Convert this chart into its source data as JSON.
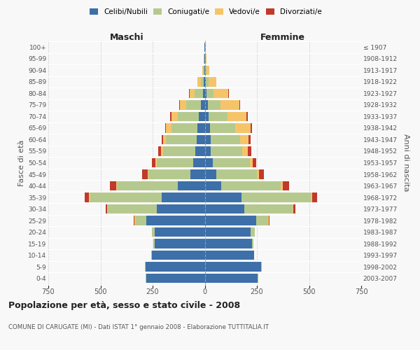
{
  "age_groups": [
    "0-4",
    "5-9",
    "10-14",
    "15-19",
    "20-24",
    "25-29",
    "30-34",
    "35-39",
    "40-44",
    "45-49",
    "50-54",
    "55-59",
    "60-64",
    "65-69",
    "70-74",
    "75-79",
    "80-84",
    "85-89",
    "90-94",
    "95-99",
    "100+"
  ],
  "birth_years": [
    "2003-2007",
    "1998-2002",
    "1993-1997",
    "1988-1992",
    "1983-1987",
    "1978-1982",
    "1973-1977",
    "1968-1972",
    "1963-1967",
    "1958-1962",
    "1953-1957",
    "1948-1952",
    "1943-1947",
    "1938-1942",
    "1933-1937",
    "1928-1932",
    "1923-1927",
    "1918-1922",
    "1913-1917",
    "1908-1912",
    "≤ 1907"
  ],
  "male": {
    "celibi": [
      280,
      285,
      255,
      240,
      240,
      280,
      230,
      205,
      130,
      70,
      55,
      45,
      40,
      35,
      30,
      18,
      8,
      4,
      3,
      2,
      2
    ],
    "coniugati": [
      2,
      2,
      2,
      5,
      15,
      55,
      235,
      345,
      290,
      200,
      175,
      155,
      145,
      125,
      100,
      70,
      40,
      15,
      5,
      2,
      1
    ],
    "vedovi": [
      0,
      0,
      0,
      0,
      0,
      2,
      2,
      5,
      5,
      5,
      8,
      10,
      15,
      25,
      30,
      30,
      25,
      15,
      3,
      1,
      0
    ],
    "divorziati": [
      0,
      0,
      0,
      0,
      0,
      3,
      8,
      20,
      30,
      25,
      15,
      12,
      8,
      5,
      5,
      3,
      2,
      0,
      0,
      0,
      0
    ]
  },
  "female": {
    "nubili": [
      255,
      270,
      235,
      225,
      220,
      245,
      190,
      175,
      80,
      55,
      40,
      30,
      30,
      25,
      20,
      15,
      8,
      5,
      3,
      2,
      2
    ],
    "coniugate": [
      2,
      2,
      2,
      8,
      20,
      60,
      230,
      335,
      285,
      195,
      175,
      150,
      140,
      120,
      90,
      60,
      35,
      12,
      5,
      2,
      1
    ],
    "vedove": [
      0,
      0,
      0,
      0,
      0,
      2,
      3,
      5,
      8,
      10,
      15,
      25,
      40,
      75,
      90,
      90,
      70,
      40,
      15,
      5,
      2
    ],
    "divorziate": [
      0,
      0,
      0,
      0,
      0,
      3,
      10,
      25,
      30,
      25,
      15,
      18,
      10,
      5,
      5,
      3,
      2,
      0,
      0,
      0,
      0
    ]
  },
  "colors": {
    "celibi": "#3d6fa8",
    "coniugati": "#b5c98e",
    "vedovi": "#f5c469",
    "divorziati": "#c0392b"
  },
  "legend_labels": [
    "Celibi/Nubili",
    "Coniugati/e",
    "Vedovi/e",
    "Divorziati/e"
  ],
  "title": "Popolazione per età, sesso e stato civile - 2008",
  "subtitle": "COMUNE DI CARUGATE (MI) - Dati ISTAT 1° gennaio 2008 - Elaborazione TUTTITALIA.IT",
  "ylabel_left": "Fasce di età",
  "ylabel_right": "Anni di nascita",
  "label_maschi": "Maschi",
  "label_femmine": "Femmine",
  "xlim": 750,
  "bg_color": "#f8f8f8",
  "grid_color": "#cccccc"
}
